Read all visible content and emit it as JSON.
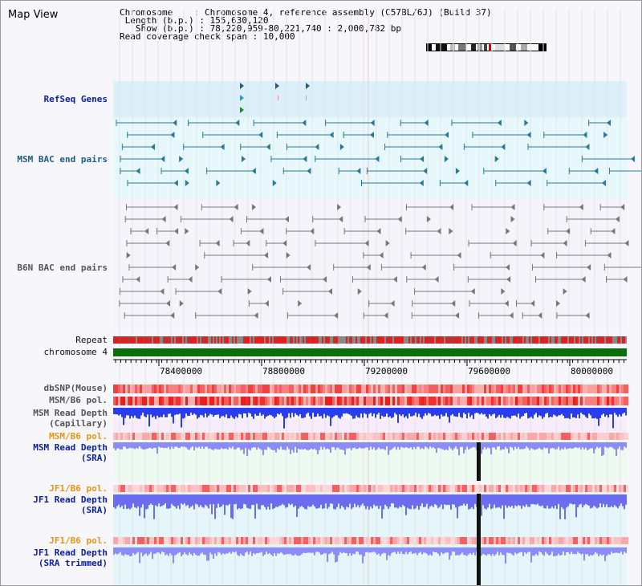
{
  "map_title": "Map View",
  "info": {
    "chromosome_key": "Chromosome",
    "chromosome_value": "Chromosome 4, reference assembly (C57BL/6J) (Build 37)",
    "length_key": "Length (b.p.)",
    "length_value": "155,630,120",
    "show_key": "Show (b.p.)",
    "show_value": "78,220,959-80,221,740 : 2,000,782 bp",
    "coverage_key": "Read coverage check span",
    "coverage_value": "10,000"
  },
  "track_labels": {
    "refseq": "RefSeq Genes",
    "msm_bac": "MSM BAC end pairs",
    "b6n_bac": "B6N BAC end pairs",
    "repeat": "Repeat",
    "chromosome": "chromosome 4",
    "dbsnp": "dbSNP(Mouse)",
    "msm_b6_pol_1": "MSM/B6 pol.",
    "msm_depth_cap_1": "MSM Read Depth",
    "msm_depth_cap_2": "(Capillary)",
    "msm_b6_pol_2": "MSM/B6 pol.",
    "msm_depth_sra_1": "MSM Read Depth",
    "msm_depth_sra_2": "(SRA)",
    "jf1_b6_pol_1": "JF1/B6 pol.",
    "jf1_depth_sra_1": "JF1 Read Depth",
    "jf1_depth_sra_2": "(SRA)",
    "jf1_b6_pol_2": "JF1/B6 pol.",
    "jf1_depth_trim_1": "JF1 Read Depth",
    "jf1_depth_trim_2": "(SRA trimmed)"
  },
  "axis": {
    "ticks": [
      "78400000",
      "78800000",
      "79200000",
      "79600000",
      "80000000"
    ]
  },
  "colors": {
    "refseq_bg": "#dcf0fa",
    "msm_bac_bg": "#e6f8fa",
    "b6n_bac_bg": "#f4f4fa",
    "chromosome_green": "#0a6e0a",
    "snp_red": "#f04040",
    "depth_blue": "#2a3cf0",
    "depth_light_blue": "#8c8cf8",
    "sra_bg": "#ecfaf0",
    "jf1_bg": "#e4f6fa"
  },
  "icons": [
    "chromosome-ideogram-icon",
    "feature-arrow-icon"
  ]
}
